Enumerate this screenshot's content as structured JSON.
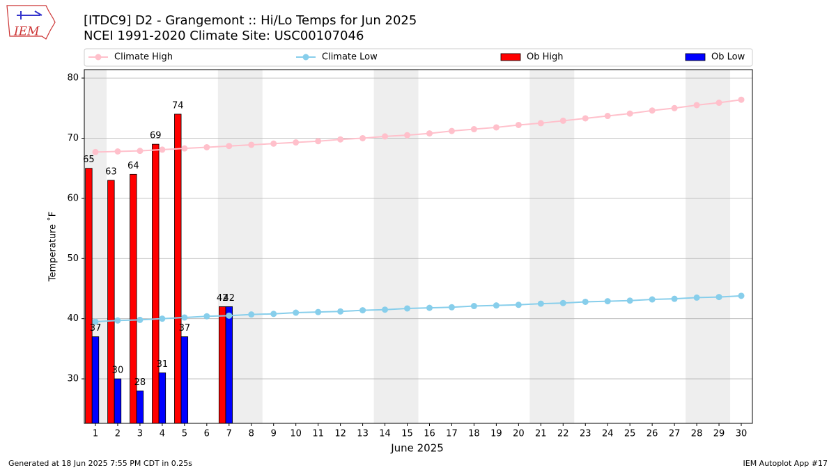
{
  "chart_data": {
    "type": "bar_line",
    "title": "[ITDC9] D2 - Grangemont  :: Hi/Lo Temps for Jun 2025",
    "subtitle": "NCEI 1991-2020 Climate Site: USC00107046",
    "logo_text": "IEM",
    "xlabel": "June 2025",
    "ylabel": "Temperature ˚F",
    "footer_left": "Generated at 18 Jun 2025 7:55 PM CDT in 0.25s",
    "footer_right": "IEM Autoplot App #17",
    "x": [
      1,
      2,
      3,
      4,
      5,
      6,
      7,
      8,
      9,
      10,
      11,
      12,
      13,
      14,
      15,
      16,
      17,
      18,
      19,
      20,
      21,
      22,
      23,
      24,
      25,
      26,
      27,
      28,
      29,
      30
    ],
    "xlim": [
      0.5,
      30.5
    ],
    "xticks": [
      1,
      2,
      3,
      4,
      5,
      6,
      7,
      8,
      9,
      10,
      11,
      12,
      13,
      14,
      15,
      16,
      17,
      18,
      19,
      20,
      21,
      22,
      23,
      24,
      25,
      26,
      27,
      28,
      29,
      30
    ],
    "ylim": [
      22.6,
      81.4
    ],
    "yticks": [
      30,
      40,
      50,
      60,
      70,
      80
    ],
    "grid": true,
    "shaded_spans": [
      [
        0.5,
        1.5
      ],
      [
        6.5,
        8.5
      ],
      [
        13.5,
        15.5
      ],
      [
        20.5,
        22.5
      ],
      [
        27.5,
        29.5
      ]
    ],
    "series": [
      {
        "name": "Climate High",
        "kind": "line",
        "color": "#ffc0cb",
        "values": [
          67.7,
          67.8,
          67.9,
          68.1,
          68.3,
          68.5,
          68.7,
          68.9,
          69.1,
          69.3,
          69.5,
          69.8,
          70.0,
          70.3,
          70.5,
          70.8,
          71.2,
          71.5,
          71.8,
          72.2,
          72.5,
          72.9,
          73.3,
          73.7,
          74.1,
          74.6,
          75.0,
          75.5,
          75.9,
          76.4
        ]
      },
      {
        "name": "Climate Low",
        "kind": "line",
        "color": "#87ceeb",
        "values": [
          39.5,
          39.7,
          39.8,
          40.0,
          40.2,
          40.4,
          40.5,
          40.7,
          40.8,
          41.0,
          41.1,
          41.2,
          41.4,
          41.5,
          41.7,
          41.8,
          41.9,
          42.1,
          42.2,
          42.3,
          42.5,
          42.6,
          42.8,
          42.9,
          43.0,
          43.2,
          43.3,
          43.5,
          43.6,
          43.8
        ]
      },
      {
        "name": "Ob High",
        "kind": "bar",
        "color": "#ff0000",
        "values": [
          65,
          63,
          64,
          69,
          74,
          null,
          42,
          null,
          null,
          null,
          null,
          null,
          null,
          null,
          null,
          null,
          null,
          null,
          null,
          null,
          null,
          null,
          null,
          null,
          null,
          null,
          null,
          null,
          null,
          null
        ]
      },
      {
        "name": "Ob Low",
        "kind": "bar",
        "color": "#0000ff",
        "values": [
          37,
          30,
          28,
          31,
          37,
          null,
          42,
          null,
          null,
          null,
          null,
          null,
          null,
          null,
          null,
          null,
          null,
          null,
          null,
          null,
          null,
          null,
          null,
          null,
          null,
          null,
          null,
          null,
          null,
          null
        ]
      }
    ]
  }
}
